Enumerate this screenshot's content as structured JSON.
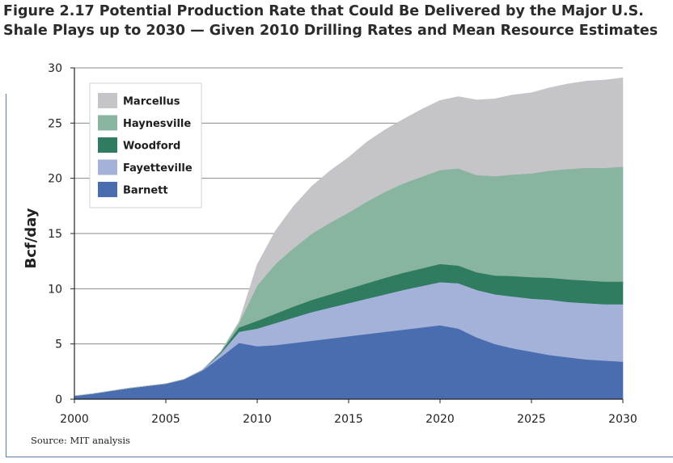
{
  "figure": {
    "number": "Figure 2.17",
    "title": "Potential Production Rate that Could Be Delivered by the Major U.S. Shale Plays up to 2030 — Given 2010 Drilling Rates and Mean Resource Estimates",
    "source": "Source: MIT analysis"
  },
  "chart_data": {
    "type": "area",
    "stacked": true,
    "title": "Potential Production Rate that Could Be Delivered by the Major U.S. Shale Plays up to 2030 — Given 2010 Drilling Rates and Mean Resource Estimates",
    "xlabel": "",
    "ylabel": "Bcf/day",
    "xlim": [
      2000,
      2030
    ],
    "ylim": [
      0,
      30
    ],
    "xticks": [
      2000,
      2005,
      2010,
      2015,
      2020,
      2025,
      2030
    ],
    "yticks": [
      0,
      5,
      10,
      15,
      20,
      25,
      30
    ],
    "legend_position": "top-left",
    "x": [
      2000,
      2001,
      2002,
      2003,
      2004,
      2005,
      2006,
      2007,
      2008,
      2009,
      2010,
      2011,
      2012,
      2013,
      2014,
      2015,
      2016,
      2017,
      2018,
      2019,
      2020,
      2021,
      2022,
      2023,
      2024,
      2025,
      2026,
      2027,
      2028,
      2029,
      2030
    ],
    "series": [
      {
        "name": "Barnett",
        "color": "#4a6db0",
        "values": [
          0.3,
          0.5,
          0.75,
          1.0,
          1.2,
          1.4,
          1.8,
          2.6,
          3.8,
          5.1,
          4.8,
          4.9,
          5.1,
          5.3,
          5.5,
          5.7,
          5.9,
          6.1,
          6.3,
          6.5,
          6.7,
          6.4,
          5.6,
          5.0,
          4.6,
          4.3,
          4.0,
          3.8,
          3.6,
          3.5,
          3.4
        ]
      },
      {
        "name": "Fayetteville",
        "color": "#a4b2da",
        "values": [
          0,
          0,
          0,
          0,
          0,
          0,
          0,
          0.05,
          0.35,
          1.0,
          1.6,
          2.0,
          2.3,
          2.6,
          2.8,
          3.0,
          3.2,
          3.4,
          3.6,
          3.75,
          3.9,
          4.1,
          4.3,
          4.5,
          4.7,
          4.8,
          5.0,
          5.0,
          5.1,
          5.1,
          5.2
        ]
      },
      {
        "name": "Woodford",
        "color": "#2f7c60",
        "values": [
          0,
          0,
          0,
          0,
          0,
          0,
          0,
          0,
          0.1,
          0.4,
          0.7,
          0.85,
          1.0,
          1.1,
          1.2,
          1.3,
          1.4,
          1.5,
          1.55,
          1.6,
          1.65,
          1.6,
          1.6,
          1.7,
          1.85,
          1.95,
          2.0,
          2.05,
          2.05,
          2.05,
          2.05
        ]
      },
      {
        "name": "Haynesville",
        "color": "#88b4a0",
        "values": [
          0,
          0,
          0,
          0,
          0,
          0,
          0,
          0,
          0.05,
          0.4,
          3.2,
          4.5,
          5.3,
          6.0,
          6.5,
          6.9,
          7.4,
          7.8,
          8.1,
          8.3,
          8.5,
          8.8,
          8.8,
          9.0,
          9.2,
          9.4,
          9.7,
          10.0,
          10.2,
          10.3,
          10.4
        ]
      },
      {
        "name": "Marcellus",
        "color": "#c5c5c9",
        "values": [
          0,
          0,
          0,
          0,
          0,
          0,
          0,
          0,
          0,
          0.1,
          1.9,
          3.0,
          3.8,
          4.3,
          4.7,
          5.0,
          5.4,
          5.6,
          5.8,
          6.1,
          6.3,
          6.5,
          6.8,
          7.0,
          7.2,
          7.3,
          7.5,
          7.7,
          7.85,
          7.95,
          8.05
        ]
      }
    ],
    "legend_order": [
      "Marcellus",
      "Haynesville",
      "Woodford",
      "Fayetteville",
      "Barnett"
    ]
  }
}
